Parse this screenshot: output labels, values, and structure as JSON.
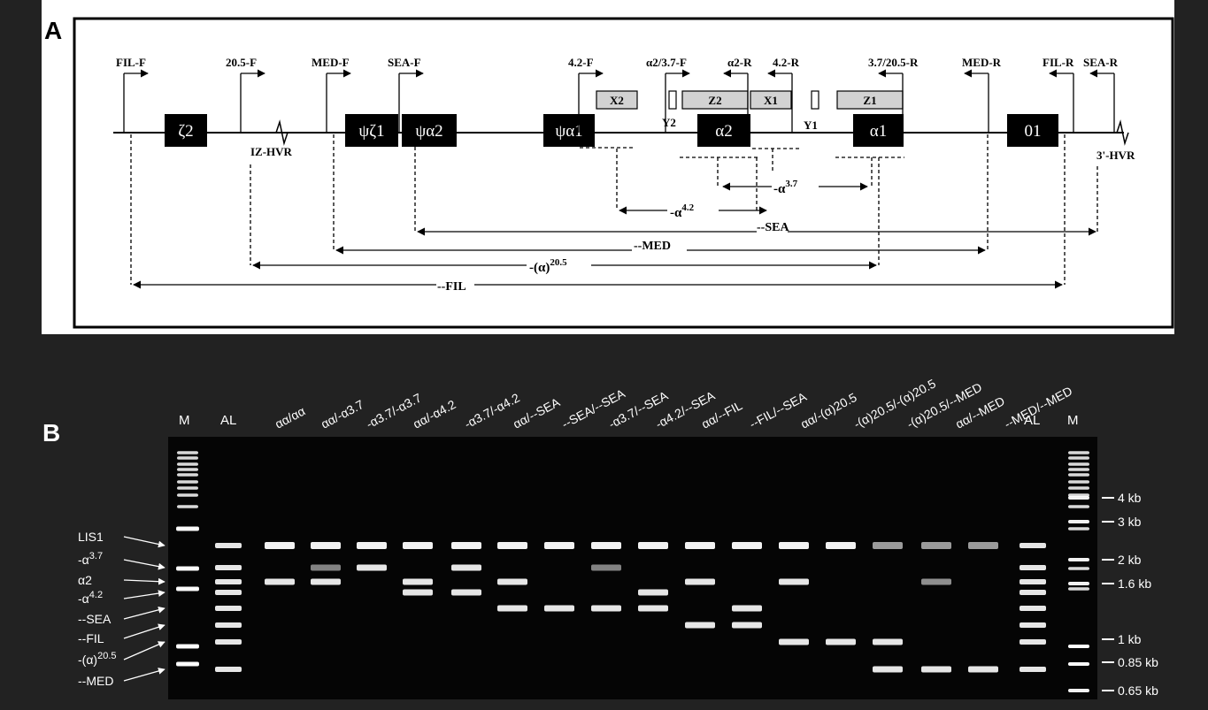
{
  "panel_a": {
    "label": "A",
    "primers": [
      {
        "id": "fil_f",
        "text": "FIL-F"
      },
      {
        "id": "p205_f",
        "text": "20.5-F"
      },
      {
        "id": "med_f",
        "text": "MED-F"
      },
      {
        "id": "sea_f",
        "text": "SEA-F"
      },
      {
        "id": "p42_f",
        "text": "4.2-F"
      },
      {
        "id": "a2_37_f",
        "text": "α2/3.7-F"
      },
      {
        "id": "a2_r",
        "text": "α2-R"
      },
      {
        "id": "p42_r",
        "text": "4.2-R"
      },
      {
        "id": "p37_205_r",
        "text": "3.7/20.5-R"
      },
      {
        "id": "med_r",
        "text": "MED-R"
      },
      {
        "id": "fil_r",
        "text": "FIL-R"
      },
      {
        "id": "sea_r",
        "text": "SEA-R"
      }
    ],
    "genes": [
      {
        "id": "zeta2",
        "text": "ζ2"
      },
      {
        "id": "psizeta1",
        "text": "ψζ1"
      },
      {
        "id": "psialpha2",
        "text": "ψα2"
      },
      {
        "id": "psialpha1",
        "text": "ψα1"
      },
      {
        "id": "alpha2",
        "text": "α2"
      },
      {
        "id": "alpha1",
        "text": "α1"
      },
      {
        "id": "theta1",
        "text": "01"
      }
    ],
    "boxes": [
      {
        "id": "x2",
        "text": "X2"
      },
      {
        "id": "z2",
        "text": "Z2"
      },
      {
        "id": "x1",
        "text": "X1"
      },
      {
        "id": "z1",
        "text": "Z1"
      }
    ],
    "box_labels": {
      "y2": "Y2",
      "y1": "Y1"
    },
    "hvr": {
      "iz": "IZ-HVR",
      "three": "3'-HVR"
    },
    "deletions": {
      "a37": {
        "pre": "-α",
        "sup": "3.7"
      },
      "a42": {
        "pre": "-α",
        "sup": "4.2"
      },
      "sea": "--SEA",
      "med": "--MED",
      "a205": {
        "pre": "-(α)",
        "sup": "20.5"
      },
      "fil": "--FIL"
    }
  },
  "panel_b": {
    "label": "B",
    "lanes": [
      {
        "id": "m1",
        "text": "M"
      },
      {
        "id": "al1",
        "text": "AL"
      },
      {
        "id": "l1",
        "text": "αα/αα"
      },
      {
        "id": "l2",
        "text": "αα/-α3.7"
      },
      {
        "id": "l3",
        "text": "-α3.7/-α3.7"
      },
      {
        "id": "l4",
        "text": "αα/-α4.2"
      },
      {
        "id": "l5",
        "text": "-α3.7/-α4.2"
      },
      {
        "id": "l6",
        "text": "αα/--SEA"
      },
      {
        "id": "l7",
        "text": "--SEA/--SEA"
      },
      {
        "id": "l8",
        "text": "-α3.7/--SEA"
      },
      {
        "id": "l9",
        "text": "-α4.2/--SEA"
      },
      {
        "id": "l10",
        "text": "αα/--FIL"
      },
      {
        "id": "l11",
        "text": "--FIL/--SEA"
      },
      {
        "id": "l12",
        "text": "αα/-(α)20.5"
      },
      {
        "id": "l13",
        "text": "-(α)20.5/-(α)20.5"
      },
      {
        "id": "l14",
        "text": "-(α)20.5/--MED"
      },
      {
        "id": "l15",
        "text": "αα/--MED"
      },
      {
        "id": "l16",
        "text": "--MED/--MED"
      },
      {
        "id": "al2",
        "text": "AL"
      },
      {
        "id": "m2",
        "text": "M"
      }
    ],
    "left_markers": [
      {
        "id": "lis1",
        "text": "LIS1"
      },
      {
        "id": "a37",
        "pre": "-α",
        "sup": "3.7"
      },
      {
        "id": "a2",
        "text": "α2"
      },
      {
        "id": "a42",
        "pre": "-α",
        "sup": "4.2"
      },
      {
        "id": "sea",
        "text": "--SEA"
      },
      {
        "id": "fil",
        "text": "--FIL"
      },
      {
        "id": "a205",
        "pre": "-(α)",
        "sup": "20.5"
      },
      {
        "id": "med",
        "text": "--MED"
      }
    ],
    "size_markers": [
      {
        "id": "kb4",
        "text": "4 kb"
      },
      {
        "id": "kb3",
        "text": "3 kb"
      },
      {
        "id": "kb2",
        "text": "2 kb"
      },
      {
        "id": "kb16",
        "text": "1.6 kb"
      },
      {
        "id": "kb1",
        "text": "1 kb"
      },
      {
        "id": "kb085",
        "text": "0.85 kb"
      },
      {
        "id": "kb065",
        "text": "0.65 kb"
      }
    ]
  }
}
